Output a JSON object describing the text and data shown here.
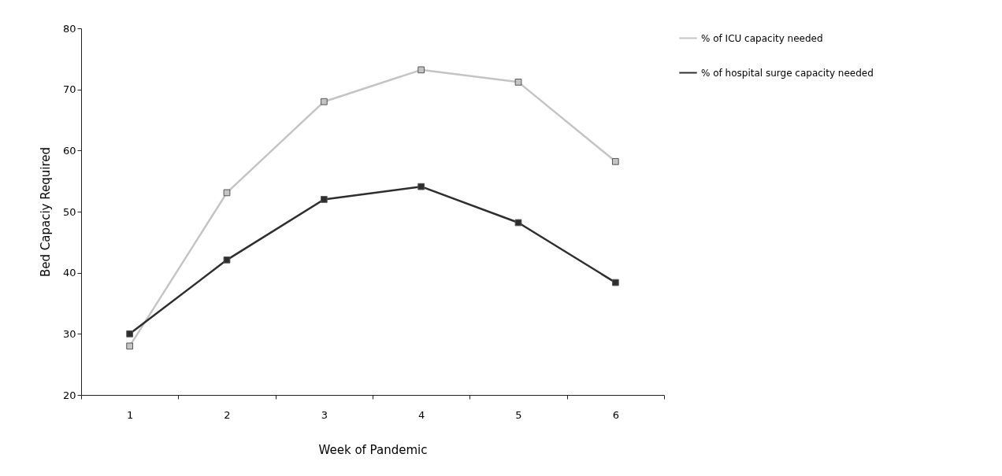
{
  "chart_data": {
    "type": "line",
    "xlabel": "Week of Pandemic",
    "ylabel": "Bed Capaciy Required",
    "categories": [
      "1",
      "2",
      "3",
      "4",
      "5",
      "6"
    ],
    "series": [
      {
        "name": "% of ICU capacity needed",
        "color": "#c4c4c4",
        "values": [
          28.0,
          53.1,
          68.0,
          73.2,
          71.2,
          58.2
        ]
      },
      {
        "name": "% of hospital surge capacity needed",
        "color": "#2e2e2e",
        "values": [
          30.0,
          42.1,
          52.0,
          54.1,
          48.2,
          38.4
        ]
      }
    ],
    "ylim": [
      20,
      80
    ],
    "yticks": [
      20,
      30,
      40,
      50,
      60,
      70,
      80
    ],
    "grid": false,
    "legend": "top right",
    "marker": "square",
    "line_style": "solid"
  }
}
